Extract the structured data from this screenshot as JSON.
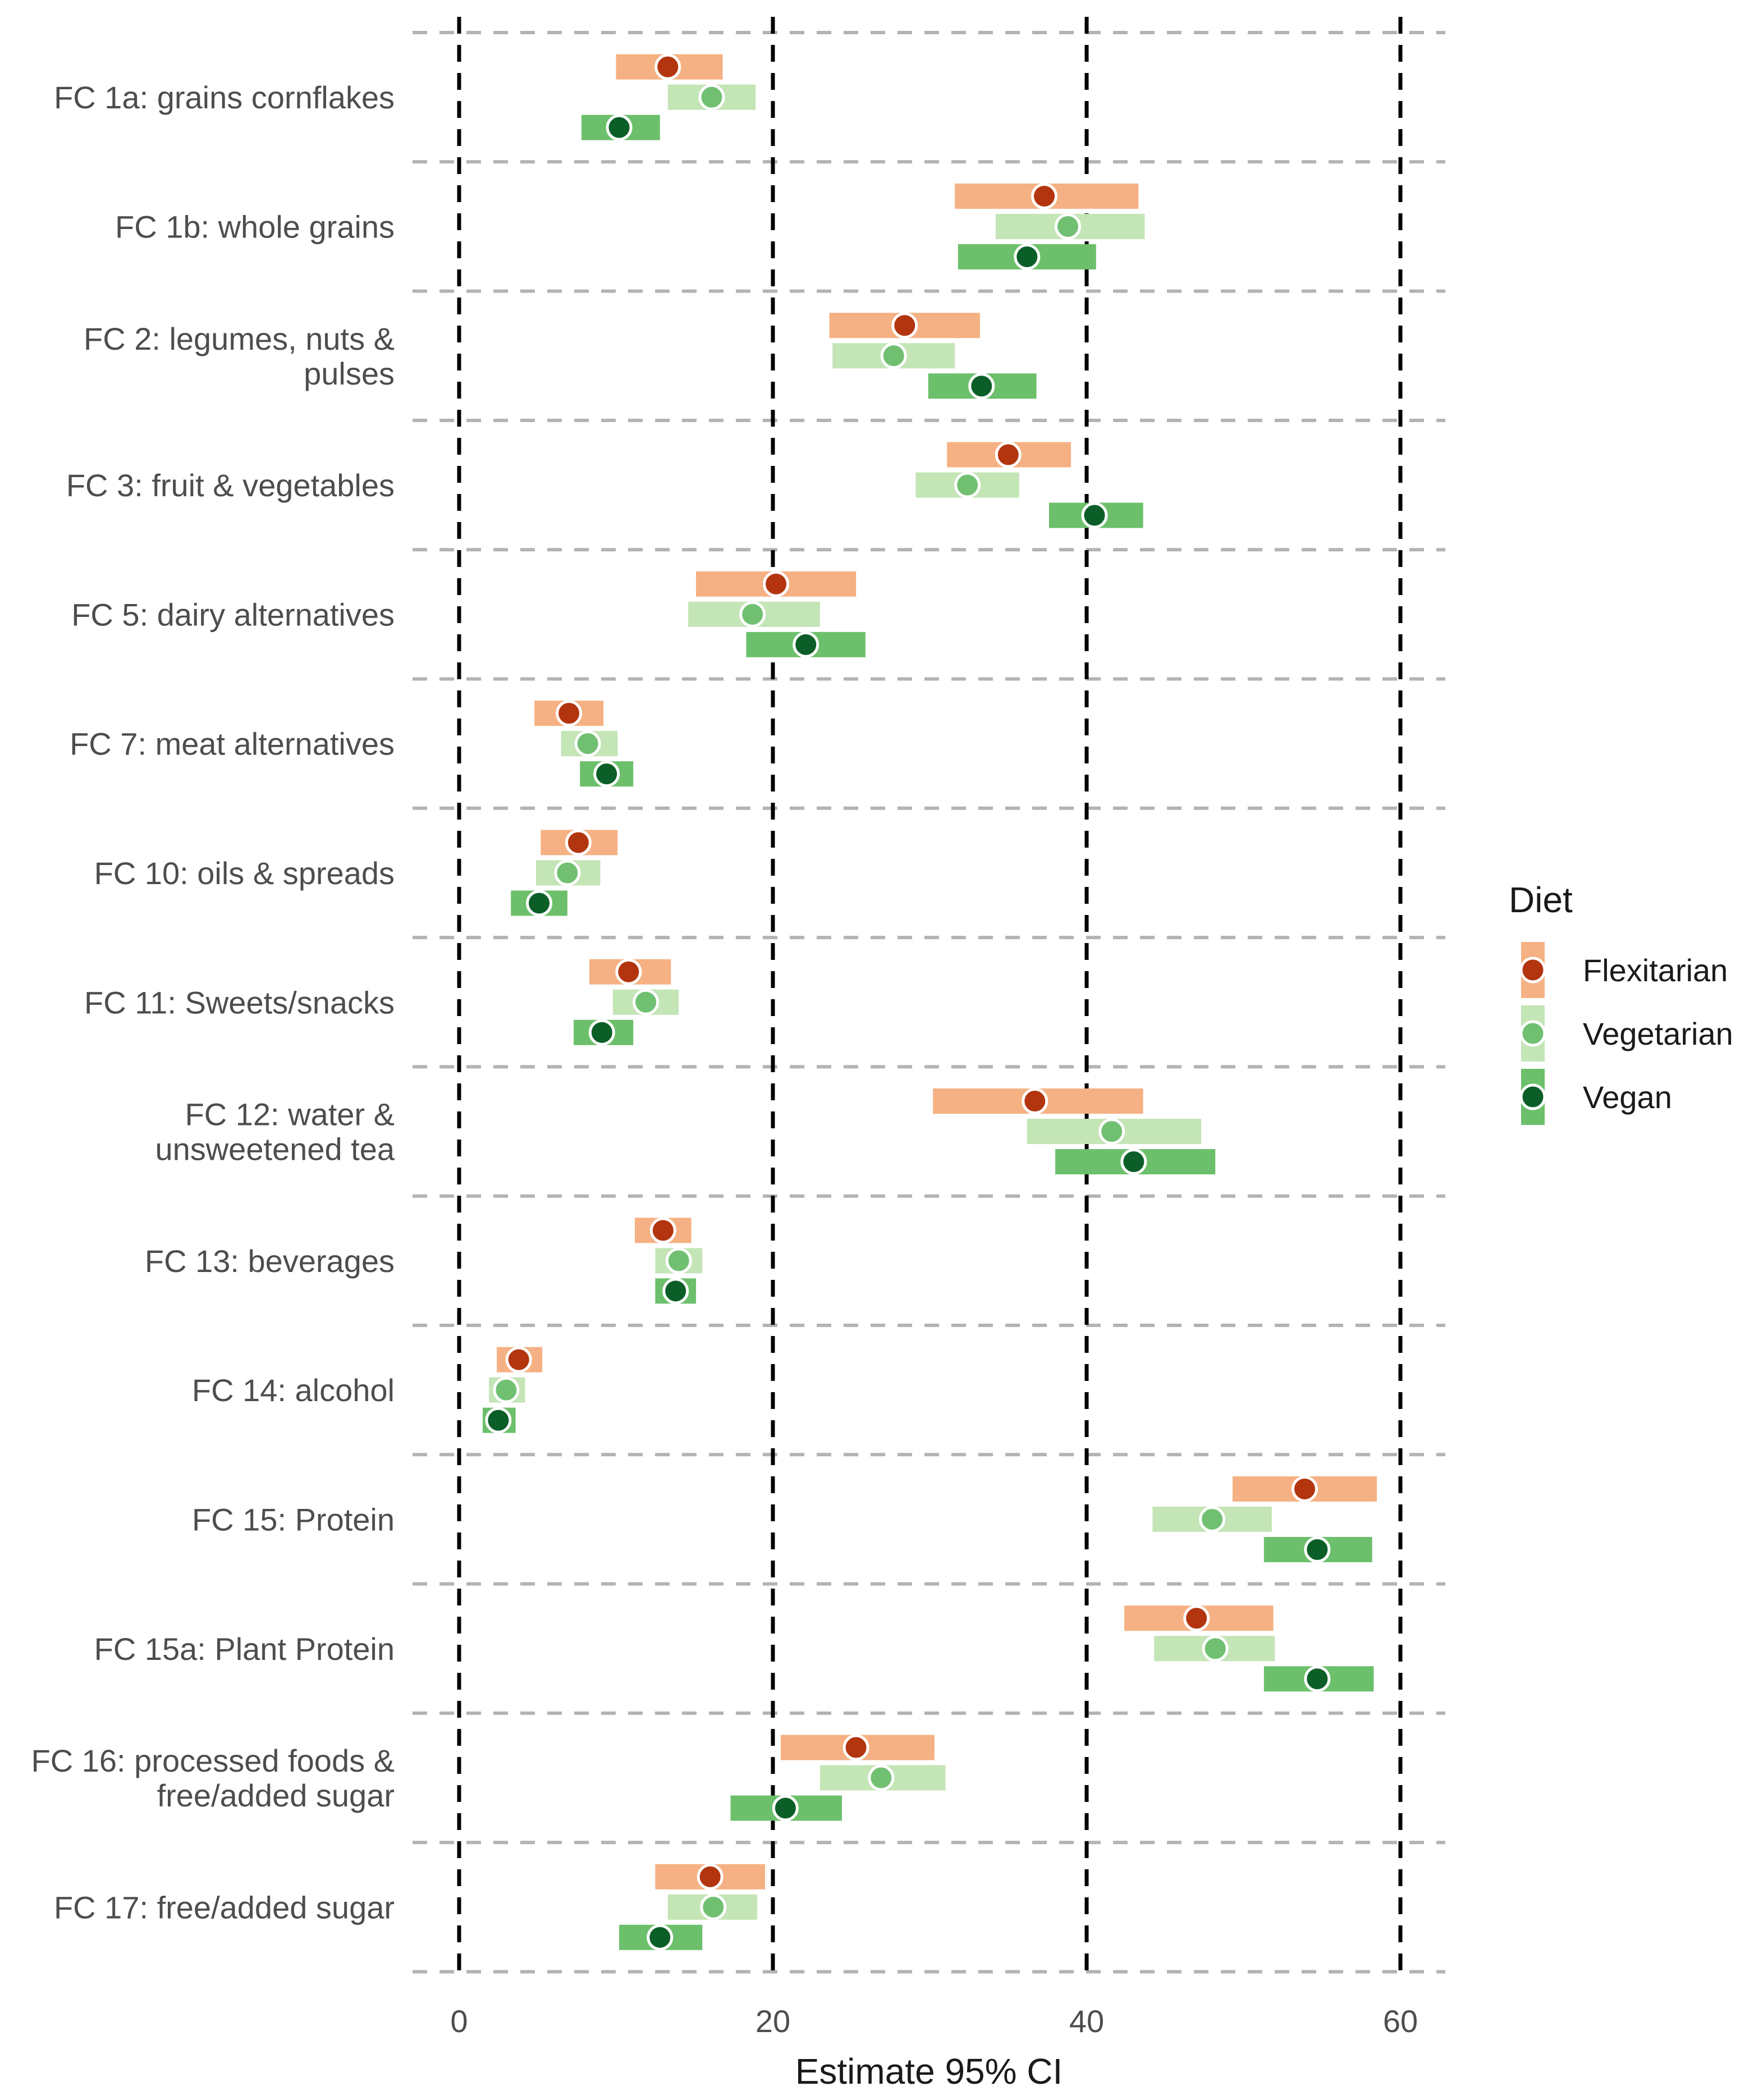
{
  "chart_data": {
    "type": "forest-interval",
    "xlabel": "Estimate 95% CI",
    "ylabel": "",
    "xlim": [
      -4,
      62
    ],
    "xticks": [
      0,
      20,
      40,
      60
    ],
    "tick_labels": [
      "0",
      "20",
      "40",
      "60"
    ],
    "grid": true,
    "legend": {
      "title": "Diet",
      "position": "right",
      "entries": [
        {
          "name": "Flexitarian",
          "bar_color": "#f5b183",
          "point_color": "#b2350f"
        },
        {
          "name": "Vegetarian",
          "bar_color": "#c4e5b6",
          "point_color": "#71c072"
        },
        {
          "name": "Vegan",
          "bar_color": "#6cbf6b",
          "point_color": "#0b5e27"
        }
      ]
    },
    "categories": [
      {
        "label": [
          "FC 1a: grains cornflakes"
        ],
        "values": [
          {
            "series": "Flexitarian",
            "est": 13.3,
            "lo": 10.0,
            "hi": 16.8
          },
          {
            "series": "Vegetarian",
            "est": 16.1,
            "lo": 13.3,
            "hi": 18.9
          },
          {
            "series": "Vegan",
            "est": 10.2,
            "lo": 7.8,
            "hi": 12.8
          }
        ]
      },
      {
        "label": [
          "FC 1b: whole grains"
        ],
        "values": [
          {
            "series": "Flexitarian",
            "est": 37.3,
            "lo": 31.6,
            "hi": 43.3
          },
          {
            "series": "Vegetarian",
            "est": 38.8,
            "lo": 34.2,
            "hi": 43.7
          },
          {
            "series": "Vegan",
            "est": 36.2,
            "lo": 31.8,
            "hi": 40.6
          }
        ]
      },
      {
        "label": [
          "FC 2: legumes, nuts &",
          "pulses"
        ],
        "values": [
          {
            "series": "Flexitarian",
            "est": 28.4,
            "lo": 23.6,
            "hi": 33.2
          },
          {
            "series": "Vegetarian",
            "est": 27.7,
            "lo": 23.8,
            "hi": 31.6
          },
          {
            "series": "Vegan",
            "est": 33.3,
            "lo": 29.9,
            "hi": 36.8
          }
        ]
      },
      {
        "label": [
          "FC 3: fruit & vegetables"
        ],
        "values": [
          {
            "series": "Flexitarian",
            "est": 35.0,
            "lo": 31.1,
            "hi": 39.0
          },
          {
            "series": "Vegetarian",
            "est": 32.4,
            "lo": 29.1,
            "hi": 35.7
          },
          {
            "series": "Vegan",
            "est": 40.5,
            "lo": 37.6,
            "hi": 43.6
          }
        ]
      },
      {
        "label": [
          "FC 5: dairy alternatives"
        ],
        "values": [
          {
            "series": "Flexitarian",
            "est": 20.2,
            "lo": 15.1,
            "hi": 25.3
          },
          {
            "series": "Vegetarian",
            "est": 18.7,
            "lo": 14.6,
            "hi": 23.0
          },
          {
            "series": "Vegan",
            "est": 22.1,
            "lo": 18.3,
            "hi": 25.9
          }
        ]
      },
      {
        "label": [
          "FC 7: meat alternatives"
        ],
        "values": [
          {
            "series": "Flexitarian",
            "est": 7.0,
            "lo": 4.8,
            "hi": 9.2
          },
          {
            "series": "Vegetarian",
            "est": 8.2,
            "lo": 6.5,
            "hi": 10.1
          },
          {
            "series": "Vegan",
            "est": 9.4,
            "lo": 7.7,
            "hi": 11.1
          }
        ]
      },
      {
        "label": [
          "FC 10: oils & spreads"
        ],
        "values": [
          {
            "series": "Flexitarian",
            "est": 7.6,
            "lo": 5.2,
            "hi": 10.1
          },
          {
            "series": "Vegetarian",
            "est": 6.9,
            "lo": 4.9,
            "hi": 9.0
          },
          {
            "series": "Vegan",
            "est": 5.1,
            "lo": 3.3,
            "hi": 6.9
          }
        ]
      },
      {
        "label": [
          "FC 11: Sweets/snacks"
        ],
        "values": [
          {
            "series": "Flexitarian",
            "est": 10.8,
            "lo": 8.3,
            "hi": 13.5
          },
          {
            "series": "Vegetarian",
            "est": 11.9,
            "lo": 9.8,
            "hi": 14.0
          },
          {
            "series": "Vegan",
            "est": 9.1,
            "lo": 7.3,
            "hi": 11.1
          }
        ]
      },
      {
        "label": [
          "FC 12: water &",
          "unsweetened tea"
        ],
        "values": [
          {
            "series": "Flexitarian",
            "est": 36.7,
            "lo": 30.2,
            "hi": 43.6
          },
          {
            "series": "Vegetarian",
            "est": 41.6,
            "lo": 36.2,
            "hi": 47.3
          },
          {
            "series": "Vegan",
            "est": 43.0,
            "lo": 38.0,
            "hi": 48.2
          }
        ]
      },
      {
        "label": [
          "FC 13: beverages"
        ],
        "values": [
          {
            "series": "Flexitarian",
            "est": 13.0,
            "lo": 11.2,
            "hi": 14.8
          },
          {
            "series": "Vegetarian",
            "est": 14.0,
            "lo": 12.5,
            "hi": 15.5
          },
          {
            "series": "Vegan",
            "est": 13.8,
            "lo": 12.5,
            "hi": 15.1
          }
        ]
      },
      {
        "label": [
          "FC 14: alcohol"
        ],
        "values": [
          {
            "series": "Flexitarian",
            "est": 3.8,
            "lo": 2.4,
            "hi": 5.3
          },
          {
            "series": "Vegetarian",
            "est": 3.0,
            "lo": 1.9,
            "hi": 4.2
          },
          {
            "series": "Vegan",
            "est": 2.5,
            "lo": 1.5,
            "hi": 3.6
          }
        ]
      },
      {
        "label": [
          "FC 15: Protein"
        ],
        "values": [
          {
            "series": "Flexitarian",
            "est": 53.9,
            "lo": 49.3,
            "hi": 58.5
          },
          {
            "series": "Vegetarian",
            "est": 48.0,
            "lo": 44.2,
            "hi": 51.8
          },
          {
            "series": "Vegan",
            "est": 54.7,
            "lo": 51.3,
            "hi": 58.2
          }
        ]
      },
      {
        "label": [
          "FC 15a: Plant Protein"
        ],
        "values": [
          {
            "series": "Flexitarian",
            "est": 47.0,
            "lo": 42.4,
            "hi": 51.9
          },
          {
            "series": "Vegetarian",
            "est": 48.2,
            "lo": 44.3,
            "hi": 52.0
          },
          {
            "series": "Vegan",
            "est": 54.7,
            "lo": 51.3,
            "hi": 58.3
          }
        ]
      },
      {
        "label": [
          "FC 16: processed foods &",
          "free/added sugar"
        ],
        "values": [
          {
            "series": "Flexitarian",
            "est": 25.3,
            "lo": 20.5,
            "hi": 30.3
          },
          {
            "series": "Vegetarian",
            "est": 26.9,
            "lo": 23.0,
            "hi": 31.0
          },
          {
            "series": "Vegan",
            "est": 20.8,
            "lo": 17.3,
            "hi": 24.4
          }
        ]
      },
      {
        "label": [
          "FC 17: free/added sugar"
        ],
        "values": [
          {
            "series": "Flexitarian",
            "est": 16.0,
            "lo": 12.5,
            "hi": 19.5
          },
          {
            "series": "Vegetarian",
            "est": 16.2,
            "lo": 13.3,
            "hi": 19.0
          },
          {
            "series": "Vegan",
            "est": 12.8,
            "lo": 10.2,
            "hi": 15.5
          }
        ]
      }
    ]
  }
}
